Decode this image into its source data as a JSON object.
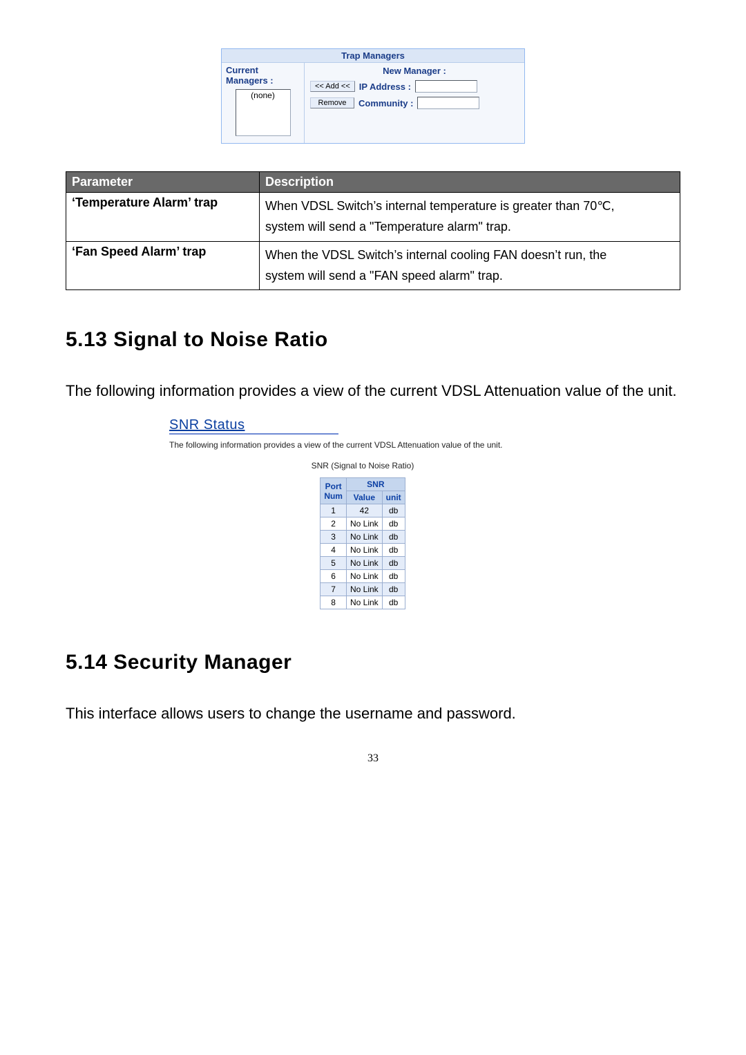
{
  "trap": {
    "panel_title": "Trap Managers",
    "current_label_line1": "Current",
    "current_label_line2": "Managers :",
    "list_item": "(none)",
    "new_manager_label": "New Manager :",
    "add_btn": "<< Add <<",
    "remove_btn": "Remove",
    "ip_label": "IP Address :",
    "community_label": "Community :"
  },
  "param_table": {
    "col1": "Parameter",
    "col2": "Description",
    "rows": [
      {
        "label": "‘Temperature Alarm’ trap",
        "line1": "When VDSL Switch’s internal temperature is greater than 70℃,",
        "line2": "system will send a   \"Temperature alarm\" trap."
      },
      {
        "label": "‘Fan Speed Alarm’ trap",
        "line1": "When the VDSL Switch’s internal cooling FAN doesn’t run, the",
        "line2": "system will send a \"FAN speed alarm\" trap."
      }
    ]
  },
  "sec513": {
    "heading": "5.13   Signal to Noise Ratio",
    "body": "The following information provides a view of the current VDSL Attenuation value of the unit."
  },
  "snr": {
    "title": "SNR Status",
    "subtitle": "The following information provides a view of the current VDSL Attenuation value of the unit.",
    "caption": "SNR (Signal to Noise Ratio)",
    "columns": {
      "port_line1": "Port",
      "port_line2": "Num",
      "snr_header": "SNR",
      "value": "Value",
      "unit": "unit"
    },
    "rows": [
      {
        "port": "1",
        "value": "42",
        "unit": "db"
      },
      {
        "port": "2",
        "value": "No Link",
        "unit": "db"
      },
      {
        "port": "3",
        "value": "No Link",
        "unit": "db"
      },
      {
        "port": "4",
        "value": "No Link",
        "unit": "db"
      },
      {
        "port": "5",
        "value": "No Link",
        "unit": "db"
      },
      {
        "port": "6",
        "value": "No Link",
        "unit": "db"
      },
      {
        "port": "7",
        "value": "No Link",
        "unit": "db"
      },
      {
        "port": "8",
        "value": "No Link",
        "unit": "db"
      }
    ]
  },
  "sec514": {
    "heading": "5.14   Security Manager",
    "body": "This interface allows users to change the username and password."
  },
  "pagenum": "33"
}
